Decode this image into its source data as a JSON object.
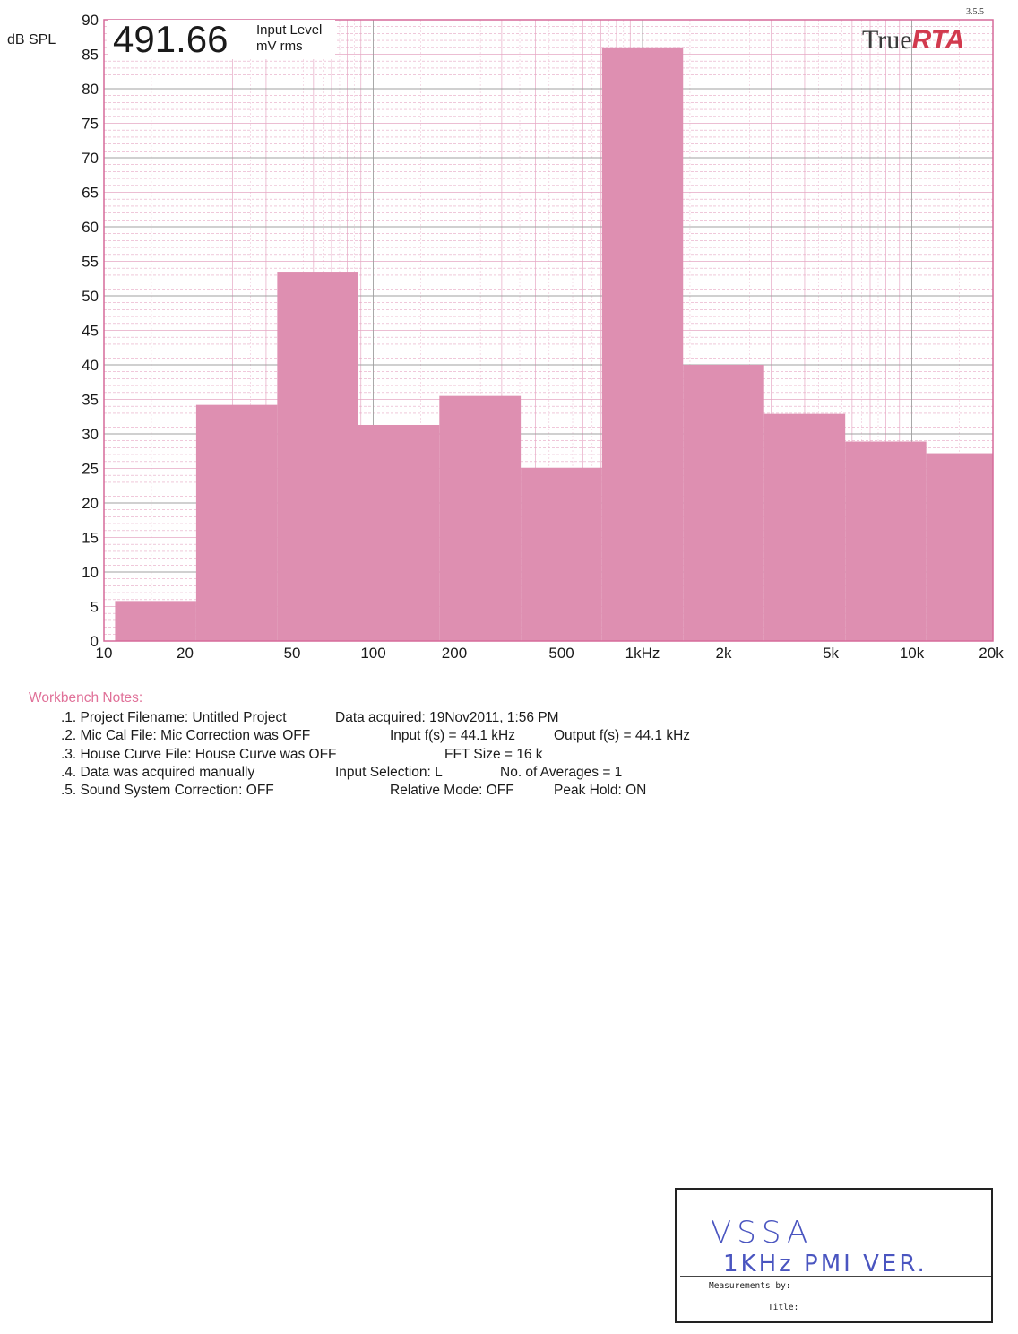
{
  "version": "3.5.5",
  "readout": {
    "value": "491.66",
    "label_line1": "Input Level",
    "label_line2": "mV rms"
  },
  "brand": {
    "part1": "True",
    "part2": "RTA"
  },
  "colors": {
    "bar": "#de8fb1",
    "grid_major": "#a0a0a0",
    "grid_minor": "#e6a8c4",
    "frame": "#d66a9a",
    "notes_title": "#e07098"
  },
  "chart_data": {
    "type": "bar",
    "title": "",
    "xlabel": "",
    "ylabel": "dB SPL",
    "xscale": "log",
    "xlim": [
      10,
      20000
    ],
    "ylim": [
      0,
      90
    ],
    "yticks": [
      0,
      5,
      10,
      15,
      20,
      25,
      30,
      35,
      40,
      45,
      50,
      55,
      60,
      65,
      70,
      75,
      80,
      85,
      90
    ],
    "xticks": [
      {
        "value": 10,
        "label": "10"
      },
      {
        "value": 20,
        "label": "20"
      },
      {
        "value": 50,
        "label": "50"
      },
      {
        "value": 100,
        "label": "100"
      },
      {
        "value": 200,
        "label": "200"
      },
      {
        "value": 500,
        "label": "500"
      },
      {
        "value": 1000,
        "label": "1kHz"
      },
      {
        "value": 2000,
        "label": "2k"
      },
      {
        "value": 5000,
        "label": "5k"
      },
      {
        "value": 10000,
        "label": "10k"
      },
      {
        "value": 20000,
        "label": "20k"
      }
    ],
    "bands": [
      {
        "f_low": 11,
        "f_high": 22,
        "value": 5.8
      },
      {
        "f_low": 22,
        "f_high": 44,
        "value": 34.2
      },
      {
        "f_low": 44,
        "f_high": 88,
        "value": 53.5
      },
      {
        "f_low": 88,
        "f_high": 176,
        "value": 31.3
      },
      {
        "f_low": 176,
        "f_high": 353,
        "value": 35.5
      },
      {
        "f_low": 353,
        "f_high": 707,
        "value": 25.1
      },
      {
        "f_low": 707,
        "f_high": 1414,
        "value": 86.0
      },
      {
        "f_low": 1414,
        "f_high": 2828,
        "value": 40.0
      },
      {
        "f_low": 2828,
        "f_high": 5657,
        "value": 32.9
      },
      {
        "f_low": 5657,
        "f_high": 11314,
        "value": 28.9
      },
      {
        "f_low": 11314,
        "f_high": 20000,
        "value": 27.2
      }
    ],
    "grid": true,
    "legend": "none"
  },
  "notes": {
    "title": "Workbench Notes:",
    "rows": [
      {
        "left": ".1. Project Filename: Untitled Project",
        "mid": "Data acquired: 19Nov2011, 1:56 PM",
        "right": ""
      },
      {
        "left": ".2. Mic Cal File: Mic Correction was OFF",
        "mid": "Input f(s) = 44.1 kHz",
        "right": "Output f(s) = 44.1 kHz"
      },
      {
        "left": ".3. House Curve File: House Curve was OFF",
        "mid": "FFT Size = 16 k",
        "right": ""
      },
      {
        "left": ".4. Data was acquired manually",
        "mid": "Input Selection: L",
        "right": "No. of Averages = 1"
      },
      {
        "left": ".5. Sound System Correction: OFF",
        "mid": "Relative Mode:  OFF",
        "right": "Peak Hold: ON"
      }
    ]
  },
  "signbox": {
    "hand_line1": "VSSA",
    "hand_line2": "1KHz  PMI VER.",
    "measurements_label": "Measurements by:",
    "title_label": "Title:"
  }
}
